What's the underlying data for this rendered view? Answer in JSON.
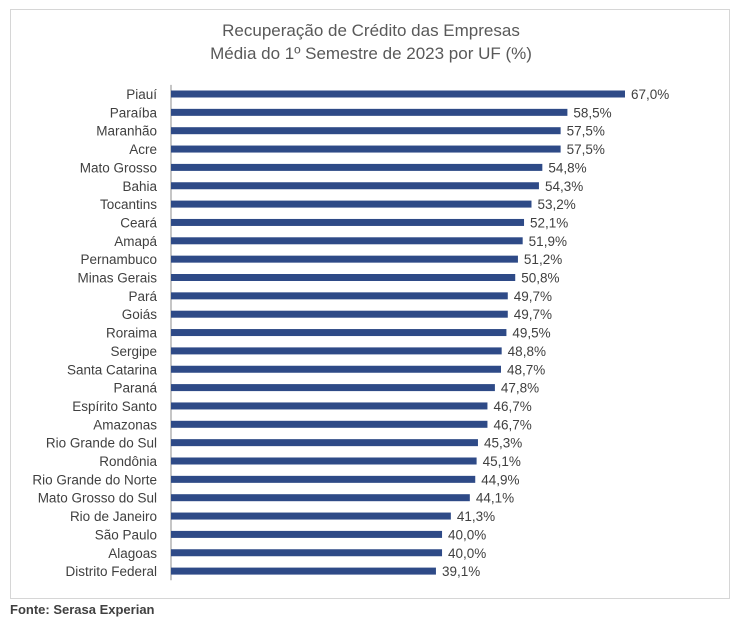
{
  "chart_data": {
    "type": "bar",
    "orientation": "horizontal",
    "title": "Recuperação de Crédito das Empresas",
    "subtitle": "Média do 1º Semestre de 2023 por UF (%)",
    "categories": [
      "Piauí",
      "Paraíba",
      "Maranhão",
      "Acre",
      "Mato Grosso",
      "Bahia",
      "Tocantins",
      "Ceará",
      "Amapá",
      "Pernambuco",
      "Minas Gerais",
      "Pará",
      "Goiás",
      "Roraima",
      "Sergipe",
      "Santa Catarina",
      "Paraná",
      "Espírito Santo",
      "Amazonas",
      "Rio Grande do Sul",
      "Rondônia",
      "Rio Grande do Norte",
      "Mato Grosso do Sul",
      "Rio de Janeiro",
      "São Paulo",
      "Alagoas",
      "Distrito Federal"
    ],
    "values": [
      67.0,
      58.5,
      57.5,
      57.5,
      54.8,
      54.3,
      53.2,
      52.1,
      51.9,
      51.2,
      50.8,
      49.7,
      49.7,
      49.5,
      48.8,
      48.7,
      47.8,
      46.7,
      46.7,
      45.3,
      45.1,
      44.9,
      44.1,
      41.3,
      40.0,
      40.0,
      39.1
    ],
    "data_labels": [
      "67,0%",
      "58,5%",
      "57,5%",
      "57,5%",
      "54,8%",
      "54,3%",
      "53,2%",
      "52,1%",
      "51,9%",
      "51,2%",
      "50,8%",
      "49,7%",
      "49,7%",
      "49,5%",
      "48,8%",
      "48,7%",
      "47,8%",
      "46,7%",
      "46,7%",
      "45,3%",
      "45,1%",
      "44,9%",
      "44,1%",
      "41,3%",
      "40,0%",
      "40,0%",
      "39,1%"
    ],
    "xlim": [
      0,
      67
    ],
    "grid": false,
    "bar_color": "#2e4a87",
    "axis_color": "#8c8c8c",
    "label_color": "#404040"
  },
  "source": "Fonte: Serasa Experian"
}
